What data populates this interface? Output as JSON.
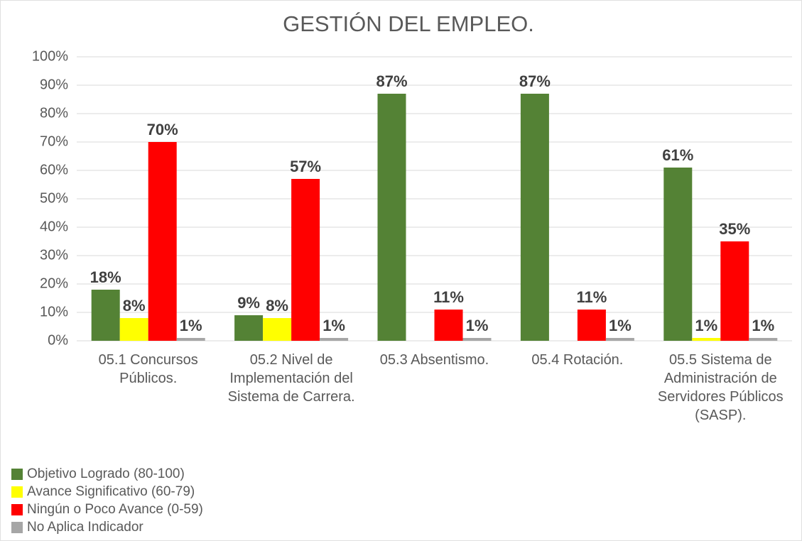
{
  "chart_data": {
    "type": "bar",
    "title": "GESTIÓN DEL EMPLEO.",
    "categories": [
      "05.1 Concursos Públicos.",
      "05.2 Nivel de Implementación del Sistema de Carrera.",
      "05.3 Absentismo.",
      "05.4 Rotación.",
      "05.5 Sistema de Administración de Servidores Públicos (SASP)."
    ],
    "series": [
      {
        "name": "Objetivo Logrado (80-100)",
        "color": "#548235",
        "values": [
          18,
          9,
          87,
          87,
          61
        ],
        "value_labels": [
          "18%",
          "9%",
          "87%",
          "87%",
          "61%"
        ]
      },
      {
        "name": "Avance Significativo (60-79)",
        "color": "#ffff00",
        "values": [
          8,
          8,
          null,
          null,
          1
        ],
        "value_labels": [
          "8%",
          "8%",
          null,
          null,
          "1%"
        ]
      },
      {
        "name": "Ningún o Poco Avance (0-59)",
        "color": "#ff0000",
        "values": [
          70,
          57,
          11,
          11,
          35
        ],
        "value_labels": [
          "70%",
          "57%",
          "11%",
          "11%",
          "35%"
        ]
      },
      {
        "name": "No Aplica Indicador",
        "color": "#a6a6a6",
        "values": [
          1,
          1,
          1,
          1,
          1
        ],
        "value_labels": [
          "1%",
          "1%",
          "1%",
          "1%",
          "1%"
        ]
      }
    ],
    "ylim": [
      0,
      100
    ],
    "yticks": [
      {
        "value": 0,
        "label": "0%"
      },
      {
        "value": 10,
        "label": "10%"
      },
      {
        "value": 20,
        "label": "20%"
      },
      {
        "value": 30,
        "label": "30%"
      },
      {
        "value": 40,
        "label": "40%"
      },
      {
        "value": 50,
        "label": "50%"
      },
      {
        "value": 60,
        "label": "60%"
      },
      {
        "value": 70,
        "label": "70%"
      },
      {
        "value": 80,
        "label": "80%"
      },
      {
        "value": 90,
        "label": "90%"
      },
      {
        "value": 100,
        "label": "100%"
      }
    ],
    "grid": true,
    "legend": "bottom-left"
  }
}
